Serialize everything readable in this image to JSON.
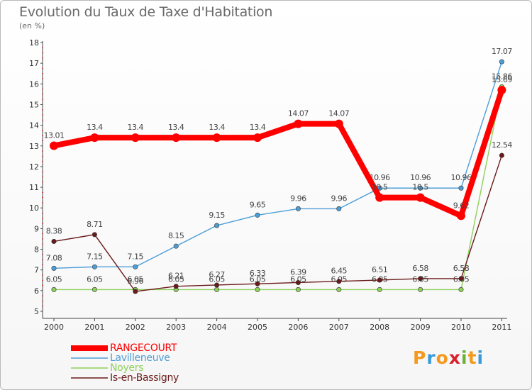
{
  "page": {
    "title": "Evolution du Taux de Taxe d'Habitation",
    "unit": "(en %)",
    "logo": {
      "letters": [
        "P",
        "r",
        "o",
        "x",
        "i",
        "t",
        "i"
      ],
      "colors": [
        "#f39a1e",
        "#3a9ad9",
        "#f39a1e",
        "#d7232e",
        "#6ab23a",
        "#f39a1e",
        "#3a9ad9"
      ]
    }
  },
  "chart_data": {
    "type": "line",
    "x": [
      "2000",
      "2001",
      "2002",
      "2003",
      "2004",
      "2005",
      "2006",
      "2007",
      "2008",
      "2009",
      "2010",
      "2011"
    ],
    "ylim": [
      5,
      18
    ],
    "yticks": [
      "5",
      "6",
      "7",
      "8",
      "9",
      "10",
      "11",
      "12",
      "13",
      "14",
      "15",
      "16",
      "17",
      "18"
    ],
    "grid": false,
    "legend_position": "bottom-left",
    "series": [
      {
        "name": "RANGECOURT",
        "color": "#ff0000",
        "values": [
          13.01,
          13.4,
          13.4,
          13.4,
          13.4,
          13.4,
          14.07,
          14.07,
          10.5,
          10.5,
          9.62,
          15.7
        ],
        "labels": [
          "13.01",
          "13.4",
          "13.4",
          "13.4",
          "13.4",
          "13.4",
          "14.07",
          "14.07",
          "10.5",
          "10.5",
          "9.62",
          "15.69"
        ]
      },
      {
        "name": "Lavilleneuve",
        "color": "#4d9ed6",
        "values": [
          7.08,
          7.15,
          7.15,
          8.15,
          9.15,
          9.65,
          9.96,
          9.96,
          10.96,
          10.96,
          10.96,
          17.07
        ],
        "labels": [
          "7.08",
          "7.15",
          "7.15",
          "8.15",
          "9.15",
          "9.65",
          "9.96",
          "9.96",
          "10.96",
          "10.96",
          "10.96",
          "17.07"
        ]
      },
      {
        "name": "Noyers",
        "color": "#8fd05a",
        "values": [
          6.05,
          6.05,
          6.05,
          6.05,
          6.05,
          6.05,
          6.05,
          6.05,
          6.05,
          6.05,
          6.05,
          15.86
        ],
        "labels": [
          "6.05",
          "6.05",
          "6.05",
          "6.05",
          "6.05",
          "6.05",
          "6.05",
          "6.05",
          "6.05",
          "6.05",
          "6.05",
          "15.86"
        ]
      },
      {
        "name": "Is-en-Bassigny",
        "color": "#6b1a1a",
        "values": [
          8.38,
          8.71,
          5.96,
          6.21,
          6.27,
          6.33,
          6.39,
          6.45,
          6.51,
          6.58,
          6.58,
          12.54
        ],
        "labels": [
          "8.38",
          "8.71",
          "5.96",
          "6.21",
          "6.27",
          "6.33",
          "6.39",
          "6.45",
          "6.51",
          "6.58",
          "6.58",
          "12.54"
        ]
      }
    ]
  }
}
